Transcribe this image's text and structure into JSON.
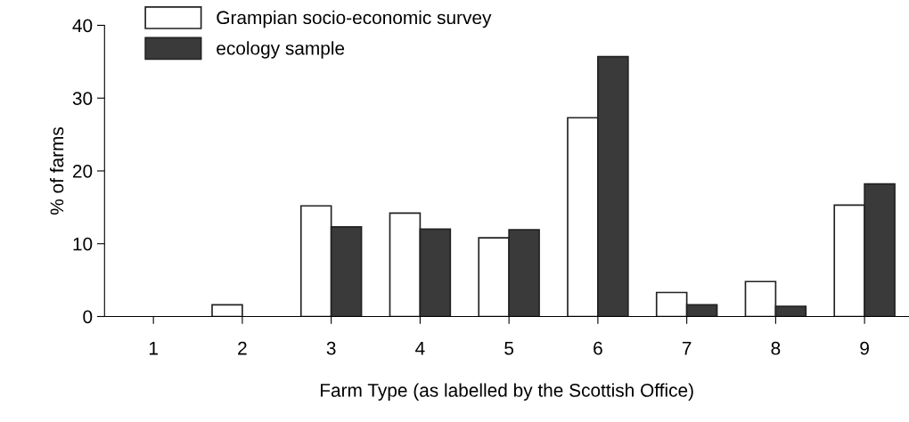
{
  "chart_data": {
    "type": "bar",
    "xlabel": "Farm Type (as labelled by the Scottish Office)",
    "ylabel": "% of farms",
    "categories": [
      "1",
      "2",
      "3",
      "4",
      "5",
      "6",
      "7",
      "8",
      "9"
    ],
    "series": [
      {
        "name": "Grampian socio-economic survey",
        "color": "#ffffff",
        "values": [
          0,
          1.6,
          15.2,
          14.2,
          10.8,
          27.3,
          3.3,
          4.8,
          15.3
        ]
      },
      {
        "name": "ecology sample",
        "color": "#3a3a3a",
        "values": [
          0,
          0,
          12.3,
          12.0,
          11.9,
          35.7,
          1.6,
          1.4,
          18.2
        ]
      }
    ],
    "ylim": [
      0,
      40
    ],
    "yticks": [
      0,
      10,
      20,
      30,
      40
    ],
    "grid": false,
    "legend": "top left"
  }
}
